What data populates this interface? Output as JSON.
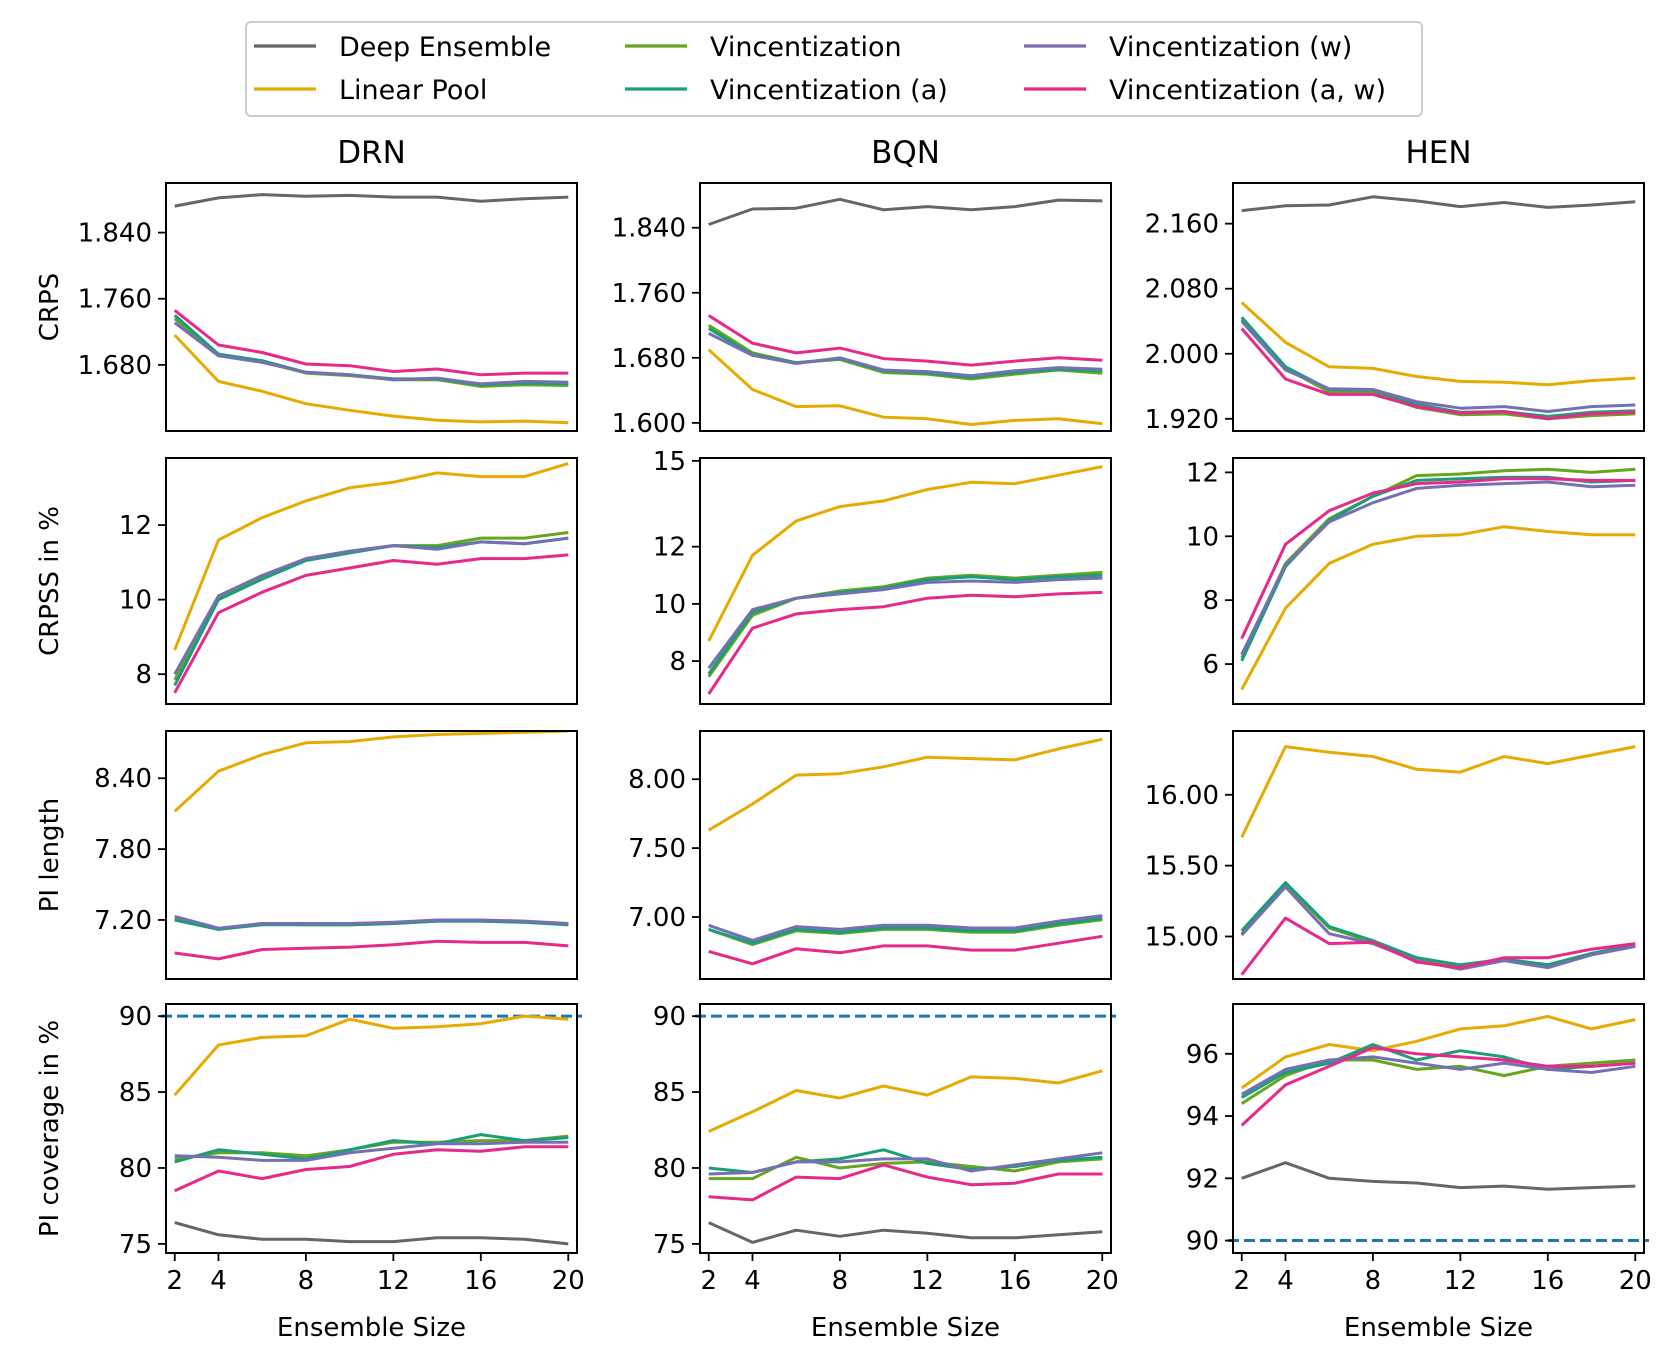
{
  "legend": {
    "location": "top-center",
    "columns": 3
  },
  "chart_data": {
    "type": "line",
    "x": [
      2,
      4,
      6,
      8,
      10,
      12,
      14,
      16,
      18,
      20
    ],
    "xlabel": "Ensemble Size",
    "xticks": [
      2,
      4,
      8,
      12,
      16,
      20
    ],
    "xlim": [
      1.6,
      20.4
    ],
    "column_titles": [
      "DRN",
      "BQN",
      "HEN"
    ],
    "row_labels": [
      "CRPS",
      "CRPSS in %",
      "PI length",
      "PI coverage in %"
    ],
    "series": [
      {
        "key": "de",
        "name": "Deep Ensemble",
        "color": "#666666"
      },
      {
        "key": "lp",
        "name": "Linear Pool",
        "color": "#e6ab02"
      },
      {
        "key": "v",
        "name": "Vincentization",
        "color": "#66a61e"
      },
      {
        "key": "va",
        "name": "Vincentization (a)",
        "color": "#1b9e77"
      },
      {
        "key": "vw",
        "name": "Vincentization (w)",
        "color": "#7570b3"
      },
      {
        "key": "vaw",
        "name": "Vincentization (a, w)",
        "color": "#e7298a"
      }
    ],
    "panels": [
      {
        "row": 0,
        "col": 0,
        "ylim": [
          1.6,
          1.9
        ],
        "yticks": [
          1.68,
          1.76,
          1.84
        ],
        "tick_decimals": 3,
        "lines": {
          "de": [
            1.872,
            1.882,
            1.886,
            1.884,
            1.885,
            1.883,
            1.883,
            1.878,
            1.881,
            1.883
          ],
          "lp": [
            1.716,
            1.66,
            1.648,
            1.633,
            1.625,
            1.618,
            1.613,
            1.611,
            1.612,
            1.61
          ],
          "v": [
            1.736,
            1.692,
            1.684,
            1.67,
            1.667,
            1.662,
            1.662,
            1.654,
            1.656,
            1.655
          ],
          "va": [
            1.74,
            1.693,
            1.685,
            1.671,
            1.668,
            1.663,
            1.663,
            1.656,
            1.658,
            1.657
          ],
          "vw": [
            1.731,
            1.691,
            1.683,
            1.671,
            1.668,
            1.662,
            1.664,
            1.657,
            1.66,
            1.659
          ],
          "vaw": [
            1.746,
            1.704,
            1.695,
            1.681,
            1.679,
            1.672,
            1.675,
            1.668,
            1.67,
            1.67
          ]
        }
      },
      {
        "row": 0,
        "col": 1,
        "ylim": [
          1.59,
          1.895
        ],
        "yticks": [
          1.6,
          1.68,
          1.76,
          1.84
        ],
        "tick_decimals": 3,
        "lines": {
          "de": [
            1.844,
            1.863,
            1.864,
            1.875,
            1.862,
            1.866,
            1.862,
            1.866,
            1.874,
            1.873
          ],
          "lp": [
            1.69,
            1.641,
            1.62,
            1.621,
            1.607,
            1.605,
            1.598,
            1.603,
            1.605,
            1.599
          ],
          "v": [
            1.72,
            1.686,
            1.674,
            1.678,
            1.662,
            1.66,
            1.654,
            1.66,
            1.665,
            1.661
          ],
          "va": [
            1.716,
            1.684,
            1.674,
            1.679,
            1.664,
            1.661,
            1.656,
            1.662,
            1.666,
            1.664
          ],
          "vw": [
            1.71,
            1.683,
            1.673,
            1.68,
            1.665,
            1.663,
            1.658,
            1.664,
            1.668,
            1.666
          ],
          "vaw": [
            1.732,
            1.698,
            1.686,
            1.692,
            1.679,
            1.676,
            1.671,
            1.676,
            1.68,
            1.677
          ]
        }
      },
      {
        "row": 0,
        "col": 2,
        "ylim": [
          1.905,
          2.21
        ],
        "yticks": [
          1.92,
          2.0,
          2.08,
          2.16
        ],
        "tick_decimals": 3,
        "lines": {
          "de": [
            2.176,
            2.182,
            2.183,
            2.193,
            2.188,
            2.181,
            2.186,
            2.18,
            2.183,
            2.187
          ],
          "lp": [
            2.063,
            2.014,
            1.984,
            1.982,
            1.972,
            1.966,
            1.965,
            1.962,
            1.967,
            1.97
          ],
          "v": [
            2.042,
            1.982,
            1.953,
            1.952,
            1.934,
            1.925,
            1.926,
            1.92,
            1.924,
            1.926
          ],
          "va": [
            2.045,
            1.984,
            1.956,
            1.955,
            1.938,
            1.928,
            1.929,
            1.923,
            1.928,
            1.93
          ],
          "vw": [
            2.04,
            1.98,
            1.957,
            1.956,
            1.941,
            1.933,
            1.935,
            1.929,
            1.935,
            1.937
          ],
          "vaw": [
            2.031,
            1.969,
            1.95,
            1.95,
            1.935,
            1.927,
            1.929,
            1.92,
            1.926,
            1.928
          ]
        }
      },
      {
        "row": 1,
        "col": 0,
        "ylim": [
          7.2,
          13.8
        ],
        "yticks": [
          8,
          10,
          12
        ],
        "tick_decimals": 0,
        "lines": {
          "lp": [
            8.65,
            11.6,
            12.2,
            12.65,
            13.0,
            13.15,
            13.4,
            13.3,
            13.3,
            13.65
          ],
          "v": [
            7.85,
            10.05,
            10.6,
            11.1,
            11.3,
            11.45,
            11.45,
            11.65,
            11.65,
            11.8
          ],
          "va": [
            7.7,
            10.0,
            10.55,
            11.05,
            11.25,
            11.45,
            11.4,
            11.55,
            11.5,
            11.65
          ],
          "vw": [
            8.0,
            10.1,
            10.65,
            11.1,
            11.3,
            11.45,
            11.35,
            11.55,
            11.5,
            11.65
          ],
          "vaw": [
            7.5,
            9.65,
            10.2,
            10.65,
            10.85,
            11.05,
            10.95,
            11.1,
            11.1,
            11.2
          ]
        }
      },
      {
        "row": 1,
        "col": 1,
        "ylim": [
          6.5,
          15.1
        ],
        "yticks": [
          8,
          10,
          12,
          15
        ],
        "tick_decimals": 0,
        "lines": {
          "lp": [
            8.7,
            11.7,
            12.9,
            13.4,
            13.6,
            14.0,
            14.25,
            14.2,
            14.5,
            14.8
          ],
          "v": [
            7.45,
            9.6,
            10.2,
            10.45,
            10.6,
            10.9,
            11.0,
            10.9,
            11.0,
            11.1
          ],
          "va": [
            7.55,
            9.7,
            10.2,
            10.4,
            10.55,
            10.85,
            10.95,
            10.85,
            10.95,
            11.0
          ],
          "vw": [
            7.75,
            9.8,
            10.2,
            10.35,
            10.5,
            10.75,
            10.8,
            10.75,
            10.85,
            10.9
          ],
          "vaw": [
            6.85,
            9.15,
            9.65,
            9.8,
            9.9,
            10.2,
            10.3,
            10.25,
            10.35,
            10.4
          ]
        }
      },
      {
        "row": 1,
        "col": 2,
        "ylim": [
          4.75,
          12.45
        ],
        "yticks": [
          6,
          8,
          10,
          12
        ],
        "tick_decimals": 0,
        "lines": {
          "lp": [
            5.2,
            7.75,
            9.15,
            9.75,
            10.0,
            10.05,
            10.3,
            10.15,
            10.05,
            10.05
          ],
          "v": [
            6.2,
            9.15,
            10.55,
            11.25,
            11.9,
            11.95,
            12.05,
            12.1,
            12.0,
            12.1
          ],
          "va": [
            6.1,
            9.05,
            10.5,
            11.25,
            11.75,
            11.8,
            11.85,
            11.85,
            11.7,
            11.75
          ],
          "vw": [
            6.3,
            9.1,
            10.45,
            11.05,
            11.5,
            11.6,
            11.65,
            11.7,
            11.55,
            11.6
          ],
          "vaw": [
            6.8,
            9.75,
            10.8,
            11.35,
            11.65,
            11.7,
            11.8,
            11.8,
            11.75,
            11.75
          ]
        }
      },
      {
        "row": 2,
        "col": 0,
        "ylim": [
          6.7,
          8.8
        ],
        "yticks": [
          7.2,
          7.8,
          8.4
        ],
        "tick_decimals": 2,
        "lines": {
          "lp": [
            8.12,
            8.46,
            8.6,
            8.7,
            8.71,
            8.75,
            8.77,
            8.78,
            8.79,
            8.8
          ],
          "v": [
            7.21,
            7.12,
            7.17,
            7.16,
            7.16,
            7.17,
            7.19,
            7.19,
            7.18,
            7.16
          ],
          "va": [
            7.2,
            7.12,
            7.16,
            7.16,
            7.16,
            7.17,
            7.19,
            7.19,
            7.18,
            7.16
          ],
          "vw": [
            7.23,
            7.13,
            7.17,
            7.17,
            7.17,
            7.18,
            7.2,
            7.2,
            7.19,
            7.17
          ],
          "vaw": [
            6.92,
            6.87,
            6.95,
            6.96,
            6.97,
            6.99,
            7.02,
            7.01,
            7.01,
            6.98
          ]
        }
      },
      {
        "row": 2,
        "col": 1,
        "ylim": [
          6.55,
          8.35
        ],
        "yticks": [
          7.0,
          7.5,
          8.0
        ],
        "tick_decimals": 2,
        "lines": {
          "lp": [
            7.63,
            7.82,
            8.03,
            8.04,
            8.09,
            8.16,
            8.15,
            8.14,
            8.22,
            8.29
          ],
          "v": [
            6.91,
            6.8,
            6.9,
            6.88,
            6.91,
            6.91,
            6.89,
            6.89,
            6.94,
            6.98
          ],
          "va": [
            6.91,
            6.81,
            6.91,
            6.89,
            6.92,
            6.92,
            6.9,
            6.9,
            6.95,
            6.99
          ],
          "vw": [
            6.94,
            6.83,
            6.93,
            6.91,
            6.94,
            6.94,
            6.92,
            6.92,
            6.97,
            7.01
          ],
          "vaw": [
            6.75,
            6.66,
            6.77,
            6.74,
            6.79,
            6.79,
            6.76,
            6.76,
            6.81,
            6.86
          ]
        }
      },
      {
        "row": 2,
        "col": 2,
        "ylim": [
          14.7,
          16.45
        ],
        "yticks": [
          15.0,
          15.5,
          16.0
        ],
        "tick_decimals": 2,
        "lines": {
          "lp": [
            15.7,
            16.34,
            16.3,
            16.27,
            16.18,
            16.16,
            16.27,
            16.22,
            16.28,
            16.34
          ],
          "v": [
            15.02,
            15.37,
            15.06,
            14.96,
            14.85,
            14.79,
            14.84,
            14.8,
            14.88,
            14.94
          ],
          "va": [
            15.04,
            15.38,
            15.07,
            14.97,
            14.85,
            14.8,
            14.84,
            14.8,
            14.88,
            14.94
          ],
          "vw": [
            15.01,
            15.35,
            15.02,
            14.95,
            14.83,
            14.77,
            14.83,
            14.78,
            14.87,
            14.93
          ],
          "vaw": [
            14.73,
            15.13,
            14.95,
            14.96,
            14.82,
            14.78,
            14.85,
            14.85,
            14.91,
            14.95
          ]
        }
      },
      {
        "row": 3,
        "col": 0,
        "ylim": [
          74.4,
          90.8
        ],
        "yticks": [
          75,
          80,
          85,
          90
        ],
        "tick_decimals": 0,
        "ref_line": 90,
        "lines": {
          "de": [
            76.4,
            75.6,
            75.3,
            75.3,
            75.15,
            75.15,
            75.4,
            75.4,
            75.3,
            75.0
          ],
          "lp": [
            84.8,
            88.1,
            88.6,
            88.7,
            89.8,
            89.2,
            89.3,
            89.5,
            90.0,
            89.8
          ],
          "v": [
            80.6,
            81.0,
            81.0,
            80.8,
            81.2,
            81.7,
            81.7,
            81.8,
            81.8,
            82.1
          ],
          "va": [
            80.4,
            81.2,
            80.9,
            80.6,
            81.2,
            81.8,
            81.6,
            82.2,
            81.8,
            82.0
          ],
          "vw": [
            80.8,
            80.7,
            80.5,
            80.5,
            81.0,
            81.3,
            81.6,
            81.6,
            81.7,
            81.7
          ],
          "vaw": [
            78.5,
            79.8,
            79.3,
            79.9,
            80.1,
            80.9,
            81.2,
            81.1,
            81.4,
            81.4
          ]
        }
      },
      {
        "row": 3,
        "col": 1,
        "ylim": [
          74.4,
          90.8
        ],
        "yticks": [
          75,
          80,
          85,
          90
        ],
        "tick_decimals": 0,
        "ref_line": 90,
        "lines": {
          "de": [
            76.4,
            75.1,
            75.9,
            75.5,
            75.9,
            75.7,
            75.4,
            75.4,
            75.6,
            75.8
          ],
          "lp": [
            82.4,
            83.7,
            85.1,
            84.6,
            85.4,
            84.8,
            86.0,
            85.9,
            85.6,
            86.4
          ],
          "v": [
            79.3,
            79.3,
            80.7,
            80.0,
            80.3,
            80.4,
            80.1,
            79.8,
            80.4,
            80.6
          ],
          "va": [
            80.0,
            79.7,
            80.4,
            80.6,
            81.2,
            80.3,
            79.9,
            80.1,
            80.5,
            80.7
          ],
          "vw": [
            79.6,
            79.7,
            80.4,
            80.4,
            80.6,
            80.6,
            79.8,
            80.2,
            80.6,
            81.0
          ],
          "vaw": [
            78.1,
            77.9,
            79.4,
            79.3,
            80.2,
            79.4,
            78.9,
            79.0,
            79.6,
            79.6
          ]
        }
      },
      {
        "row": 3,
        "col": 2,
        "ylim": [
          89.6,
          97.6
        ],
        "yticks": [
          90,
          92,
          94,
          96
        ],
        "tick_decimals": 0,
        "ref_line": 90,
        "lines": {
          "de": [
            92.0,
            92.5,
            92.0,
            91.9,
            91.85,
            91.7,
            91.75,
            91.65,
            91.7,
            91.75
          ],
          "lp": [
            94.9,
            95.9,
            96.3,
            96.1,
            96.4,
            96.8,
            96.9,
            97.2,
            96.8,
            97.1
          ],
          "v": [
            94.4,
            95.3,
            95.8,
            95.8,
            95.5,
            95.6,
            95.3,
            95.6,
            95.7,
            95.8
          ],
          "va": [
            94.6,
            95.4,
            95.7,
            96.3,
            95.8,
            96.1,
            95.9,
            95.5,
            95.6,
            95.7
          ],
          "vw": [
            94.7,
            95.5,
            95.8,
            95.9,
            95.7,
            95.5,
            95.7,
            95.5,
            95.4,
            95.6
          ],
          "vaw": [
            93.7,
            95.0,
            95.6,
            96.2,
            96.0,
            95.9,
            95.8,
            95.6,
            95.6,
            95.7
          ]
        }
      }
    ]
  }
}
